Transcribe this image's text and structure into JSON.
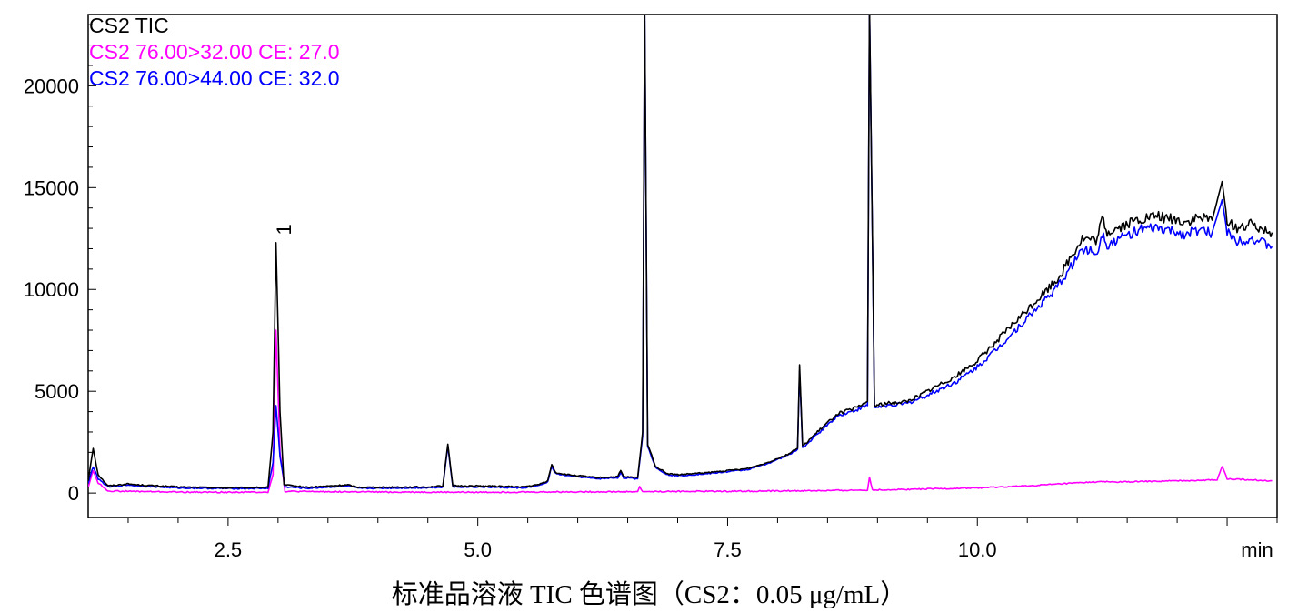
{
  "caption": "标准品溶液 TIC 色谱图（CS2：0.05 μg/mL）",
  "chart_data": {
    "type": "line",
    "x_unit_label": "min",
    "xlim": [
      1.1,
      13.0
    ],
    "ylim": [
      -1200,
      23500
    ],
    "x_ticks": [
      2.5,
      5.0,
      7.5,
      10.0
    ],
    "x_tick_labels": [
      "2.5",
      "5.0",
      "7.5",
      "10.0"
    ],
    "y_ticks": [
      0,
      5000,
      10000,
      15000,
      20000
    ],
    "y_tick_labels": [
      "0",
      "5000",
      "10000",
      "15000",
      "20000"
    ],
    "peak_annotations": [
      {
        "label": "1",
        "x": 3.0,
        "y": 12400
      }
    ],
    "series": [
      {
        "name": "CS2 TIC",
        "color": "#000000",
        "points": [
          [
            1.1,
            600
          ],
          [
            1.15,
            2200
          ],
          [
            1.2,
            900
          ],
          [
            1.3,
            350
          ],
          [
            1.5,
            450
          ],
          [
            1.6,
            400
          ],
          [
            2.0,
            300
          ],
          [
            2.5,
            250
          ],
          [
            2.9,
            280
          ],
          [
            2.95,
            3000
          ],
          [
            2.98,
            12300
          ],
          [
            3.02,
            4000
          ],
          [
            3.06,
            400
          ],
          [
            3.3,
            280
          ],
          [
            3.7,
            400
          ],
          [
            3.8,
            280
          ],
          [
            4.5,
            300
          ],
          [
            4.65,
            350
          ],
          [
            4.7,
            2400
          ],
          [
            4.75,
            350
          ],
          [
            5.0,
            350
          ],
          [
            5.2,
            330
          ],
          [
            5.45,
            300
          ],
          [
            5.6,
            400
          ],
          [
            5.7,
            600
          ],
          [
            5.74,
            1400
          ],
          [
            5.78,
            1000
          ],
          [
            5.9,
            900
          ],
          [
            6.2,
            750
          ],
          [
            6.4,
            800
          ],
          [
            6.43,
            1100
          ],
          [
            6.46,
            800
          ],
          [
            6.6,
            750
          ],
          [
            6.65,
            3000
          ],
          [
            6.67,
            24000
          ],
          [
            6.7,
            2400
          ],
          [
            6.78,
            1300
          ],
          [
            6.9,
            950
          ],
          [
            7.0,
            900
          ],
          [
            7.3,
            1000
          ],
          [
            7.7,
            1200
          ],
          [
            7.9,
            1500
          ],
          [
            8.1,
            1900
          ],
          [
            8.2,
            2200
          ],
          [
            8.22,
            6300
          ],
          [
            8.25,
            2300
          ],
          [
            8.4,
            3000
          ],
          [
            8.6,
            3900
          ],
          [
            8.8,
            4200
          ],
          [
            8.9,
            4500
          ],
          [
            8.92,
            24000
          ],
          [
            8.97,
            4300
          ],
          [
            9.1,
            4400
          ],
          [
            9.3,
            4500
          ],
          [
            9.5,
            5000
          ],
          [
            9.8,
            5800
          ],
          [
            10.0,
            6500
          ],
          [
            10.2,
            7500
          ],
          [
            10.4,
            8500
          ],
          [
            10.6,
            9500
          ],
          [
            10.8,
            10500
          ],
          [
            10.95,
            11700
          ],
          [
            11.05,
            12500
          ],
          [
            11.2,
            12400
          ],
          [
            11.25,
            13500
          ],
          [
            11.3,
            12800
          ],
          [
            11.6,
            13400
          ],
          [
            11.8,
            13600
          ],
          [
            12.0,
            13400
          ],
          [
            12.1,
            13300
          ],
          [
            12.2,
            13500
          ],
          [
            12.35,
            13400
          ],
          [
            12.45,
            15300
          ],
          [
            12.5,
            13400
          ],
          [
            12.6,
            13000
          ],
          [
            12.75,
            13200
          ],
          [
            12.95,
            12800
          ]
        ]
      },
      {
        "name": "CS2 76.00>32.00 CE: 27.0",
        "color": "#ff00ff",
        "points": [
          [
            1.1,
            300
          ],
          [
            1.15,
            1100
          ],
          [
            1.2,
            500
          ],
          [
            1.3,
            100
          ],
          [
            2.0,
            50
          ],
          [
            2.5,
            40
          ],
          [
            2.9,
            50
          ],
          [
            2.95,
            900
          ],
          [
            2.98,
            8000
          ],
          [
            3.02,
            2000
          ],
          [
            3.07,
            80
          ],
          [
            4.0,
            50
          ],
          [
            5.0,
            40
          ],
          [
            6.0,
            60
          ],
          [
            6.6,
            70
          ],
          [
            6.62,
            300
          ],
          [
            6.65,
            70
          ],
          [
            7.0,
            80
          ],
          [
            8.0,
            100
          ],
          [
            8.5,
            120
          ],
          [
            8.9,
            150
          ],
          [
            8.92,
            750
          ],
          [
            8.95,
            150
          ],
          [
            9.5,
            200
          ],
          [
            10.0,
            250
          ],
          [
            10.5,
            350
          ],
          [
            11.0,
            500
          ],
          [
            11.2,
            550
          ],
          [
            11.5,
            550
          ],
          [
            12.0,
            600
          ],
          [
            12.4,
            650
          ],
          [
            12.45,
            1300
          ],
          [
            12.5,
            700
          ],
          [
            12.95,
            600
          ]
        ]
      },
      {
        "name": "CS2 76.00>44.00 CE: 32.0",
        "color": "#0000ff",
        "points": [
          [
            1.1,
            500
          ],
          [
            1.15,
            1300
          ],
          [
            1.2,
            700
          ],
          [
            1.3,
            300
          ],
          [
            1.5,
            400
          ],
          [
            1.6,
            350
          ],
          [
            2.0,
            250
          ],
          [
            2.5,
            220
          ],
          [
            2.9,
            230
          ],
          [
            2.95,
            1500
          ],
          [
            2.98,
            4300
          ],
          [
            3.02,
            1800
          ],
          [
            3.07,
            300
          ],
          [
            3.3,
            230
          ],
          [
            3.7,
            350
          ],
          [
            3.8,
            230
          ],
          [
            4.5,
            260
          ],
          [
            4.65,
            300
          ],
          [
            4.7,
            2300
          ],
          [
            4.75,
            300
          ],
          [
            5.0,
            300
          ],
          [
            5.2,
            280
          ],
          [
            5.45,
            250
          ],
          [
            5.6,
            350
          ],
          [
            5.7,
            550
          ],
          [
            5.74,
            1300
          ],
          [
            5.78,
            950
          ],
          [
            5.9,
            850
          ],
          [
            6.2,
            700
          ],
          [
            6.4,
            750
          ],
          [
            6.43,
            1000
          ],
          [
            6.46,
            750
          ],
          [
            6.6,
            700
          ],
          [
            6.65,
            2800
          ],
          [
            6.67,
            24000
          ],
          [
            6.7,
            2300
          ],
          [
            6.78,
            1250
          ],
          [
            6.9,
            900
          ],
          [
            7.0,
            850
          ],
          [
            7.3,
            950
          ],
          [
            7.7,
            1150
          ],
          [
            7.9,
            1450
          ],
          [
            8.1,
            1850
          ],
          [
            8.2,
            2150
          ],
          [
            8.22,
            6000
          ],
          [
            8.25,
            2200
          ],
          [
            8.4,
            2900
          ],
          [
            8.6,
            3800
          ],
          [
            8.8,
            4100
          ],
          [
            8.9,
            4300
          ],
          [
            8.92,
            24000
          ],
          [
            8.97,
            4200
          ],
          [
            9.1,
            4300
          ],
          [
            9.3,
            4400
          ],
          [
            9.5,
            4800
          ],
          [
            9.8,
            5500
          ],
          [
            10.0,
            6200
          ],
          [
            10.2,
            7100
          ],
          [
            10.4,
            8100
          ],
          [
            10.6,
            9100
          ],
          [
            10.8,
            10100
          ],
          [
            10.95,
            11200
          ],
          [
            11.05,
            12000
          ],
          [
            11.2,
            11800
          ],
          [
            11.25,
            12800
          ],
          [
            11.3,
            12200
          ],
          [
            11.6,
            12900
          ],
          [
            11.8,
            13000
          ],
          [
            12.0,
            12800
          ],
          [
            12.1,
            12700
          ],
          [
            12.2,
            12900
          ],
          [
            12.35,
            12800
          ],
          [
            12.45,
            14400
          ],
          [
            12.5,
            12800
          ],
          [
            12.6,
            12400
          ],
          [
            12.75,
            12500
          ],
          [
            12.95,
            12100
          ]
        ]
      }
    ]
  }
}
